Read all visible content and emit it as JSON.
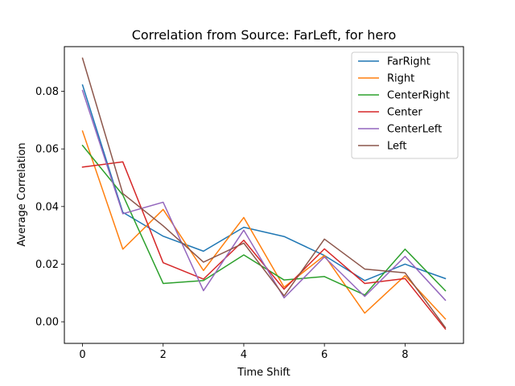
{
  "chart_data": {
    "type": "line",
    "title": "Correlation from Source: FarLeft, for hero",
    "xlabel": "Time Shift",
    "ylabel": "Average Correlation",
    "x": [
      0,
      1,
      2,
      3,
      4,
      5,
      6,
      7,
      8,
      9
    ],
    "xlim": [
      -0.45,
      9.45
    ],
    "ylim": [
      -0.0075,
      0.0955
    ],
    "xticks": [
      0,
      2,
      4,
      6,
      8
    ],
    "yticks": [
      0.0,
      0.02,
      0.04,
      0.06,
      0.08
    ],
    "ytick_labels": [
      "0.00",
      "0.02",
      "0.04",
      "0.06",
      "0.08"
    ],
    "legend_position": "upper right",
    "grid": false,
    "series": [
      {
        "name": "FarRight",
        "color": "#1f77b4",
        "values": [
          0.0822,
          0.038,
          0.0297,
          0.0245,
          0.0328,
          0.0296,
          0.023,
          0.0143,
          0.02,
          0.015
        ]
      },
      {
        "name": "Right",
        "color": "#ff7f0e",
        "values": [
          0.0662,
          0.0252,
          0.039,
          0.0178,
          0.0362,
          0.012,
          0.023,
          0.003,
          0.016,
          0.001
        ]
      },
      {
        "name": "CenterRight",
        "color": "#2ca02c",
        "values": [
          0.0612,
          0.044,
          0.0133,
          0.0143,
          0.0232,
          0.0145,
          0.0157,
          0.0093,
          0.0252,
          0.0108
        ]
      },
      {
        "name": "Center",
        "color": "#d62728",
        "values": [
          0.0537,
          0.0555,
          0.0205,
          0.0148,
          0.0283,
          0.0113,
          0.0253,
          0.0133,
          0.015,
          -0.0025
        ]
      },
      {
        "name": "CenterLeft",
        "color": "#9467bd",
        "values": [
          0.0803,
          0.0375,
          0.0415,
          0.0108,
          0.0318,
          0.0083,
          0.0225,
          0.0088,
          0.0227,
          0.0075
        ]
      },
      {
        "name": "Left",
        "color": "#8c564b",
        "values": [
          0.0915,
          0.0445,
          0.0333,
          0.0207,
          0.0273,
          0.009,
          0.0287,
          0.0183,
          0.017,
          -0.002
        ]
      }
    ]
  }
}
